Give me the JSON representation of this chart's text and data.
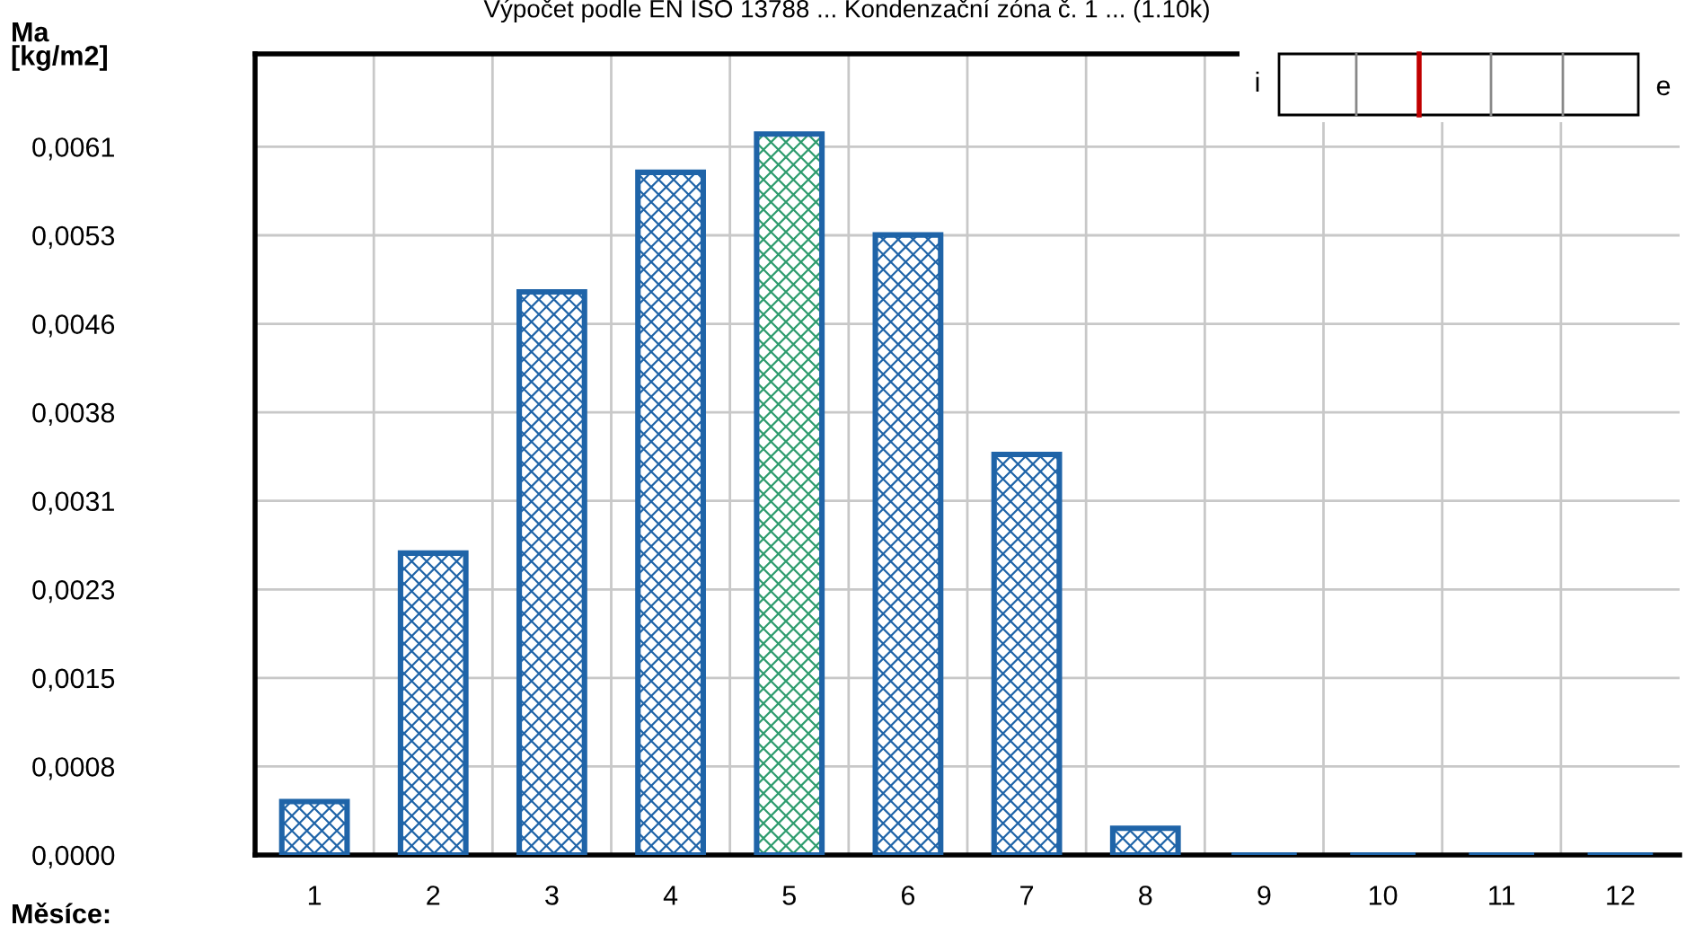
{
  "chart_data": {
    "type": "bar",
    "title": "Výpočet podle EN ISO 13788 ... Kondenzační zóna č. 1 ... (1.10k)",
    "xlabel": "Měsíce:",
    "ylabel": "Ma\n[kg/m2]",
    "categories": [
      "1",
      "2",
      "3",
      "4",
      "5",
      "6",
      "7",
      "8",
      "9",
      "10",
      "11",
      "12"
    ],
    "values": [
      0.00046,
      0.0026,
      0.00485,
      0.00588,
      0.00621,
      0.00534,
      0.00345,
      0.00023,
      0,
      0,
      0,
      0
    ],
    "colors": [
      "#1f64a8",
      "#1f64a8",
      "#1f64a8",
      "#1f64a8",
      "#2e9c6e",
      "#1f64a8",
      "#1f64a8",
      "#1f64a8",
      "#1f64a8",
      "#1f64a8",
      "#1f64a8",
      "#1f64a8"
    ],
    "ylim": [
      0,
      0.0069
    ],
    "yticks": [
      {
        "value": 0,
        "label": "0,0000"
      },
      {
        "value": 0.0007625,
        "label": "0,0008"
      },
      {
        "value": 0.001525,
        "label": "0,0015"
      },
      {
        "value": 0.0022875,
        "label": "0,0023"
      },
      {
        "value": 0.00305,
        "label": "0,0031"
      },
      {
        "value": 0.0038125,
        "label": "0,0038"
      },
      {
        "value": 0.004575,
        "label": "0,0046"
      },
      {
        "value": 0.0053375,
        "label": "0,0053"
      },
      {
        "value": 0.0061,
        "label": "0,0061"
      }
    ],
    "annotations": [
      "i",
      "e"
    ],
    "grid": true
  }
}
